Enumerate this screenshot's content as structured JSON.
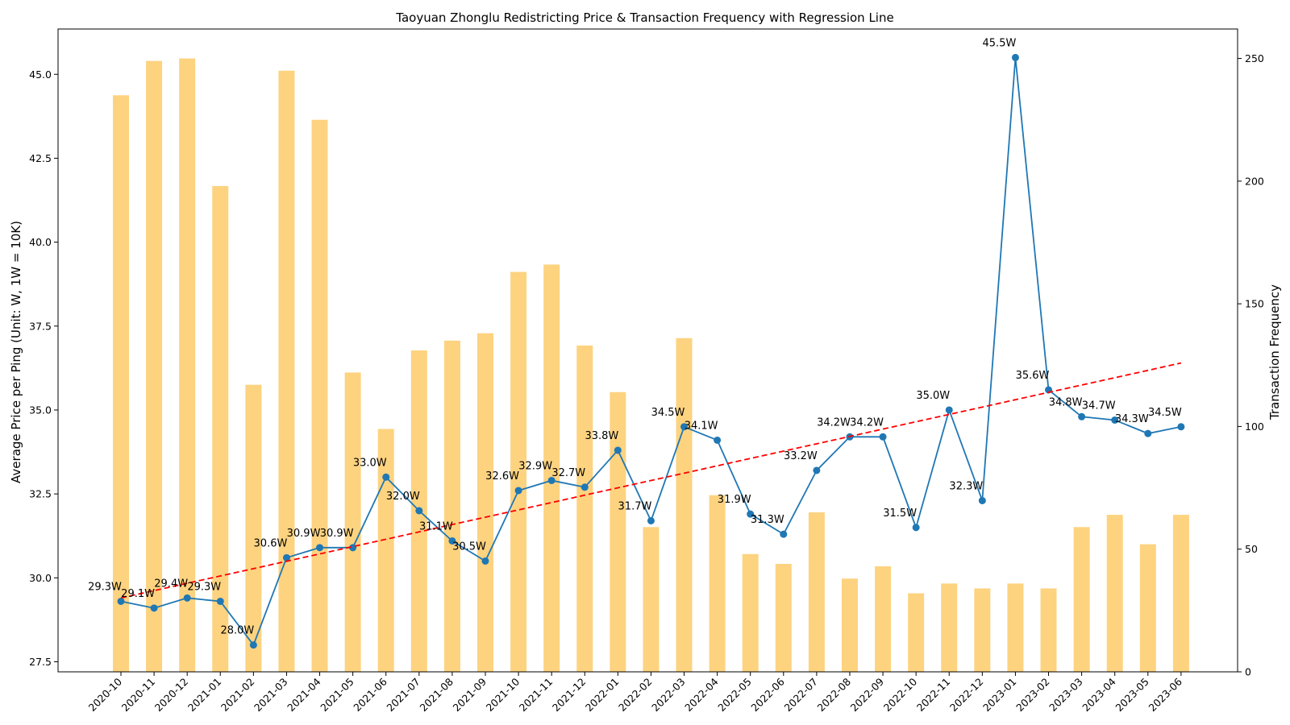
{
  "chart_data": {
    "type": "bar",
    "title": "Taoyuan Zhonglu Redistricting Price & Transaction Frequency with Regression Line",
    "xlabel": "",
    "ylabel": "Average Price per Ping (Unit: W, 1W = 10K)",
    "y2label": "Transaction Frequency",
    "ylim": [
      27.2,
      46.35
    ],
    "y2lim": [
      0,
      262
    ],
    "yticks": [
      "27.5",
      "30.0",
      "32.5",
      "35.0",
      "37.5",
      "40.0",
      "42.5",
      "45.0"
    ],
    "y2ticks": [
      "0",
      "50",
      "100",
      "150",
      "200",
      "250"
    ],
    "grid": false,
    "categories": [
      "2020-10",
      "2020-11",
      "2020-12",
      "2021-01",
      "2021-02",
      "2021-03",
      "2021-04",
      "2021-05",
      "2021-06",
      "2021-07",
      "2021-08",
      "2021-09",
      "2021-10",
      "2021-11",
      "2021-12",
      "2022-01",
      "2022-02",
      "2022-03",
      "2022-04",
      "2022-05",
      "2022-06",
      "2022-07",
      "2022-08",
      "2022-09",
      "2022-10",
      "2022-11",
      "2022-12",
      "2023-01",
      "2023-02",
      "2023-03",
      "2023-04",
      "2023-05",
      "2023-06"
    ],
    "series": [
      {
        "kind": "bar",
        "axis": "right",
        "color": "#fdd380",
        "values": [
          235,
          249,
          250,
          198,
          117,
          245,
          225,
          122,
          99,
          131,
          135,
          138,
          163,
          166,
          133,
          114,
          59,
          136,
          72,
          48,
          44,
          65,
          38,
          43,
          32,
          36,
          34,
          36,
          34,
          59,
          64,
          52,
          64
        ]
      },
      {
        "kind": "line",
        "axis": "left",
        "color": "#1f77b4",
        "values": [
          29.3,
          29.1,
          29.4,
          29.3,
          28.0,
          30.6,
          30.9,
          30.9,
          33.0,
          32.0,
          31.1,
          30.5,
          32.6,
          32.9,
          32.7,
          33.8,
          31.7,
          34.5,
          34.1,
          31.9,
          31.3,
          33.2,
          34.2,
          34.2,
          31.5,
          35.0,
          32.3,
          45.5,
          35.6,
          34.8,
          34.7,
          34.3,
          34.5
        ],
        "labels": [
          "29.3W",
          "29.1W",
          "29.4W",
          "29.3W",
          "28.0W",
          "30.6W",
          "30.9W",
          "30.9W",
          "33.0W",
          "32.0W",
          "31.1W",
          "30.5W",
          "32.6W",
          "32.9W",
          "32.7W",
          "33.8W",
          "31.7W",
          "34.5W",
          "34.1W",
          "31.9W",
          "31.3W",
          "33.2W",
          "34.2W",
          "34.2W",
          "31.5W",
          "35.0W",
          "32.3W",
          "45.5W",
          "35.6W",
          "34.8W",
          "34.7W",
          "34.3W",
          "34.5W"
        ]
      },
      {
        "kind": "regression",
        "axis": "left",
        "color": "#ff0000",
        "style": "dashed",
        "start": 29.4,
        "end": 36.4
      }
    ]
  }
}
